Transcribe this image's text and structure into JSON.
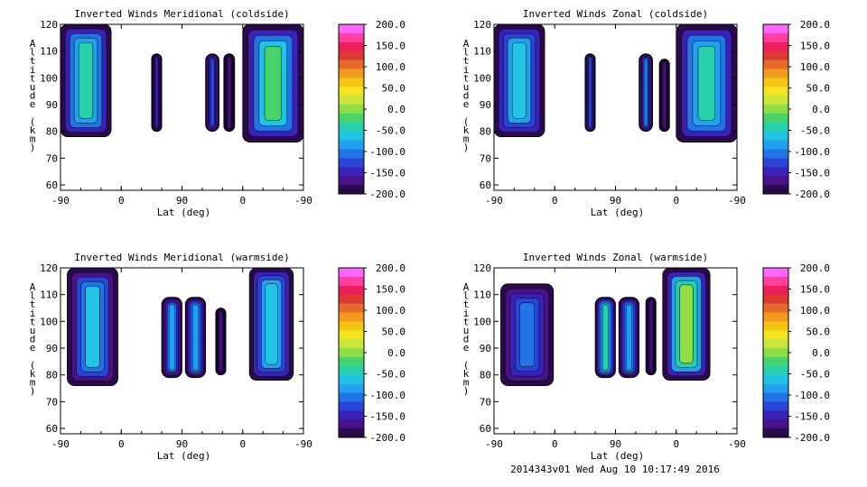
{
  "figure": {
    "footer": "2014343v01 Wed Aug 10 10:17:49 2016"
  },
  "colorbar": {
    "tick_labels": [
      "200.0",
      "150.0",
      "100.0",
      "50.0",
      "0.0",
      "-50.0",
      "-100.0",
      "-150.0",
      "-200.0"
    ],
    "range": [
      -200,
      200
    ],
    "colors": [
      "#ff66ff",
      "#ff3fa0",
      "#ee1f5a",
      "#dc3a32",
      "#e86a2a",
      "#f39a1e",
      "#f6c514",
      "#f2e41e",
      "#cde43a",
      "#8fde46",
      "#46d46a",
      "#26d0ac",
      "#20c4e6",
      "#22a2ee",
      "#2273e4",
      "#2a44d8",
      "#3a22b8",
      "#4a1288",
      "#2a0a4a"
    ]
  },
  "chart_data": [
    {
      "type": "heatmap",
      "title": "Inverted Winds Meridional (coldside)",
      "xlabel": "Lat (deg)",
      "ylabel": "Altitude (km)",
      "xticks": [
        "-90",
        "0",
        "90",
        "0",
        "-90"
      ],
      "yticks": [
        "60",
        "70",
        "80",
        "90",
        "100",
        "110",
        "120"
      ],
      "ylim": [
        58,
        120
      ],
      "xlim": [
        -90,
        270
      ],
      "value_range": [
        -200,
        200
      ],
      "regions": [
        {
          "lat": [
            -90,
            -15
          ],
          "alt": [
            78,
            120
          ],
          "mean": -40
        },
        {
          "lat": [
            45,
            60
          ],
          "alt": [
            80,
            109
          ],
          "mean": -150
        },
        {
          "lat": [
            125,
            145
          ],
          "alt": [
            80,
            109
          ],
          "mean": -120
        },
        {
          "lat": [
            152,
            168
          ],
          "alt": [
            80,
            109
          ],
          "mean": -170
        },
        {
          "lat": [
            180,
            270
          ],
          "alt": [
            76,
            120
          ],
          "mean": -20
        }
      ]
    },
    {
      "type": "heatmap",
      "title": "Inverted Winds Zonal (coldside)",
      "xlabel": "Lat (deg)",
      "ylabel": "Altitude (km)",
      "xticks": [
        "-90",
        "0",
        "90",
        "0",
        "-90"
      ],
      "yticks": [
        "60",
        "70",
        "80",
        "90",
        "100",
        "110",
        "120"
      ],
      "ylim": [
        58,
        120
      ],
      "xlim": [
        -90,
        270
      ],
      "value_range": [
        -200,
        200
      ],
      "regions": [
        {
          "lat": [
            -90,
            -15
          ],
          "alt": [
            78,
            120
          ],
          "mean": -60
        },
        {
          "lat": [
            45,
            60
          ],
          "alt": [
            80,
            109
          ],
          "mean": -120
        },
        {
          "lat": [
            125,
            145
          ],
          "alt": [
            80,
            109
          ],
          "mean": -100
        },
        {
          "lat": [
            155,
            170
          ],
          "alt": [
            80,
            107
          ],
          "mean": -170
        },
        {
          "lat": [
            180,
            270
          ],
          "alt": [
            76,
            120
          ],
          "mean": -40
        }
      ]
    },
    {
      "type": "heatmap",
      "title": "Inverted Winds Meridional (warmside)",
      "xlabel": "Lat (deg)",
      "ylabel": "Altitude (km)",
      "xticks": [
        "-90",
        "0",
        "90",
        "0",
        "-90"
      ],
      "yticks": [
        "60",
        "70",
        "80",
        "90",
        "100",
        "110",
        "120"
      ],
      "ylim": [
        58,
        120
      ],
      "xlim": [
        -90,
        270
      ],
      "value_range": [
        -200,
        200
      ],
      "regions": [
        {
          "lat": [
            -80,
            -5
          ],
          "alt": [
            76,
            120
          ],
          "mean": -70
        },
        {
          "lat": [
            60,
            90
          ],
          "alt": [
            79,
            109
          ],
          "mean": -90
        },
        {
          "lat": [
            95,
            125
          ],
          "alt": [
            79,
            109
          ],
          "mean": -80
        },
        {
          "lat": [
            140,
            155
          ],
          "alt": [
            80,
            105
          ],
          "mean": -170
        },
        {
          "lat": [
            190,
            255
          ],
          "alt": [
            78,
            120
          ],
          "mean": -60
        }
      ]
    },
    {
      "type": "heatmap",
      "title": "Inverted Winds Zonal (warmside)",
      "xlabel": "Lat (deg)",
      "ylabel": "Altitude (km)",
      "xticks": [
        "-90",
        "0",
        "90",
        "0",
        "-90"
      ],
      "yticks": [
        "60",
        "70",
        "80",
        "90",
        "100",
        "110",
        "120"
      ],
      "ylim": [
        58,
        120
      ],
      "xlim": [
        -90,
        270
      ],
      "value_range": [
        -200,
        200
      ],
      "regions": [
        {
          "lat": [
            -80,
            -2
          ],
          "alt": [
            76,
            114
          ],
          "mean": -100
        },
        {
          "lat": [
            60,
            90
          ],
          "alt": [
            79,
            109
          ],
          "mean": -40
        },
        {
          "lat": [
            95,
            125
          ],
          "alt": [
            79,
            109
          ],
          "mean": -80
        },
        {
          "lat": [
            135,
            150
          ],
          "alt": [
            80,
            109
          ],
          "mean": -170
        },
        {
          "lat": [
            160,
            230
          ],
          "alt": [
            78,
            120
          ],
          "mean": 10
        }
      ]
    }
  ]
}
